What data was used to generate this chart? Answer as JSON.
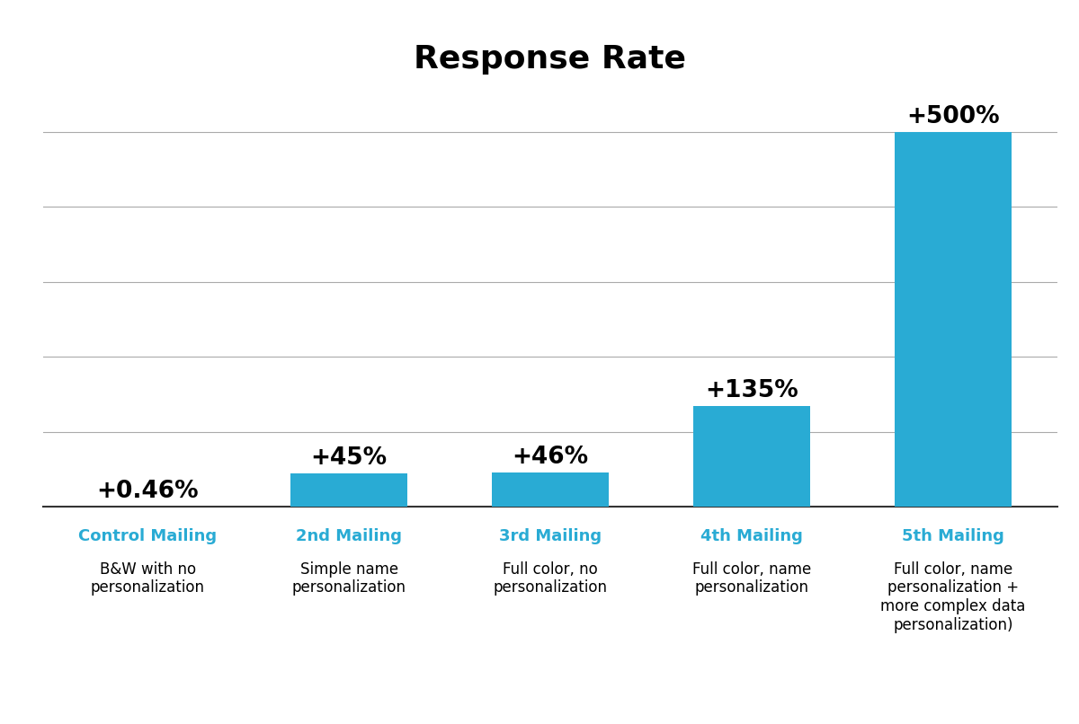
{
  "title": "Response Rate",
  "categories": [
    "Control Mailing",
    "2nd Mailing",
    "3rd Mailing",
    "4th Mailing",
    "5th Mailing"
  ],
  "subtitles": [
    "B&W with no\npersonalization",
    "Simple name\npersonalization",
    "Full color, no\npersonalization",
    "Full color, name\npersonalization",
    "Full color, name\npersonalization +\nmore complex data\npersonalization)"
  ],
  "values": [
    0.46,
    45,
    46,
    135,
    500
  ],
  "labels": [
    "+0.46%",
    "+45%",
    "+46%",
    "+135%",
    "+500%"
  ],
  "bar_color": "#29ABD4",
  "label_color": "#000000",
  "category_color": "#29ABD4",
  "subtitle_color": "#000000",
  "title_color": "#000000",
  "background_color": "#ffffff",
  "ylim": [
    0,
    560
  ],
  "grid_color": "#aaaaaa",
  "grid_linewidth": 0.8,
  "spine_color": "#333333",
  "title_fontsize": 26,
  "category_fontsize": 13,
  "subtitle_fontsize": 12,
  "label_fontsize": 19,
  "bar_width": 0.58
}
